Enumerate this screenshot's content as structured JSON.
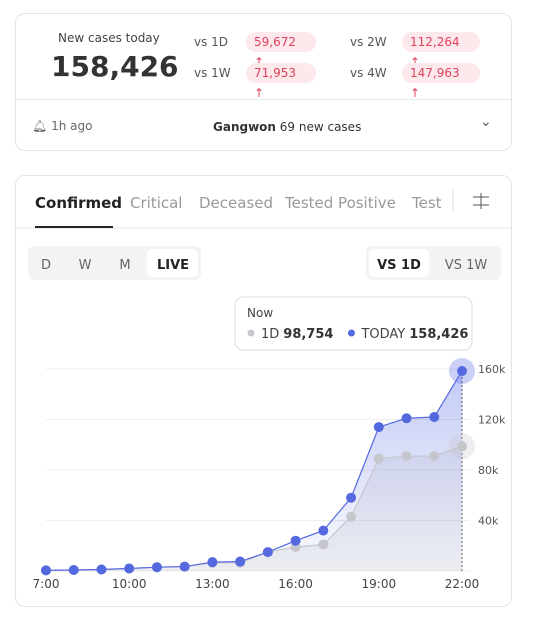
{
  "summary": {
    "title": "New cases today",
    "total": "158,426",
    "comparisons": [
      {
        "label": "vs 1D",
        "value": "59,672"
      },
      {
        "label": "vs 2W",
        "value": "112,264"
      },
      {
        "label": "vs 1W",
        "value": "71,953"
      },
      {
        "label": "vs 4W",
        "value": "147,963"
      }
    ],
    "updated": "1h ago",
    "region": "Gangwon",
    "region_text": "69 new cases"
  },
  "tabs": [
    "Confirmed",
    "Critical",
    "Deceased",
    "Tested Positive",
    "Test"
  ],
  "periods": [
    "D",
    "W",
    "M",
    "LIVE"
  ],
  "compare": [
    "VS 1D",
    "VS 1W"
  ],
  "tooltip": {
    "title": "Now",
    "values": [
      "98,754",
      "158,426"
    ]
  },
  "chart_data": {
    "type": "line",
    "categories": [
      "7:00",
      null,
      null,
      "10:00",
      null,
      null,
      "13:00",
      null,
      null,
      "16:00",
      null,
      null,
      "19:00",
      null,
      null,
      "22:00"
    ],
    "series": [
      {
        "name": "1D",
        "color": "#c6c7cc",
        "values": [
          500,
          800,
          1200,
          2000,
          3000,
          3500,
          6500,
          6500,
          15000,
          19000,
          21000,
          43000,
          89000,
          91000,
          91000,
          98754
        ]
      },
      {
        "name": "TODAY",
        "color": "#5468e0",
        "values": [
          500,
          800,
          1200,
          2000,
          3000,
          3500,
          7000,
          7500,
          15000,
          24000,
          32000,
          58000,
          114000,
          121000,
          122000,
          158426
        ]
      }
    ],
    "ylim": [
      0,
      160000
    ],
    "yticks": [
      {
        "value": 40000,
        "label": "40k"
      },
      {
        "value": 80000,
        "label": "80k"
      },
      {
        "value": 120000,
        "label": "120k"
      },
      {
        "value": 160000,
        "label": "160k"
      }
    ],
    "grid": true
  }
}
